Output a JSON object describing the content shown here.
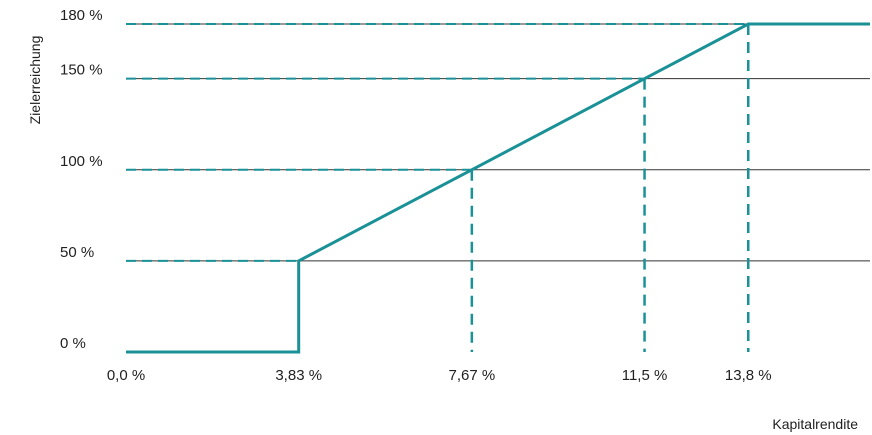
{
  "chart_data": {
    "type": "line",
    "xlabel": "Kapitalrendite",
    "ylabel": "Zielerreichung",
    "x_tick_labels": [
      "0,0 %",
      "3,83 %",
      "7,67 %",
      "11,5 %",
      "13,8 %"
    ],
    "y_tick_labels": [
      "0 %",
      "50 %",
      "100 %",
      "150 %",
      "180 %"
    ],
    "x_ticks": [
      0.0,
      3.83,
      7.67,
      11.5,
      13.8
    ],
    "y_ticks": [
      0,
      50,
      100,
      150,
      180
    ],
    "xlim": [
      0,
      16.5
    ],
    "ylim": [
      0,
      180
    ],
    "series": [
      {
        "x": [
          0.0,
          3.83,
          3.83,
          7.67,
          11.5,
          13.8,
          16.5
        ],
        "y": [
          0,
          0,
          50,
          100,
          150,
          180,
          180
        ]
      }
    ],
    "reference_points": [
      {
        "x": 3.83,
        "y": 50
      },
      {
        "x": 7.67,
        "y": 100
      },
      {
        "x": 11.5,
        "y": 150
      },
      {
        "x": 13.8,
        "y": 180
      }
    ],
    "grid": "horizontal",
    "colors": {
      "line": "#1a9196",
      "grid": "#333333",
      "text": "#222222"
    }
  }
}
